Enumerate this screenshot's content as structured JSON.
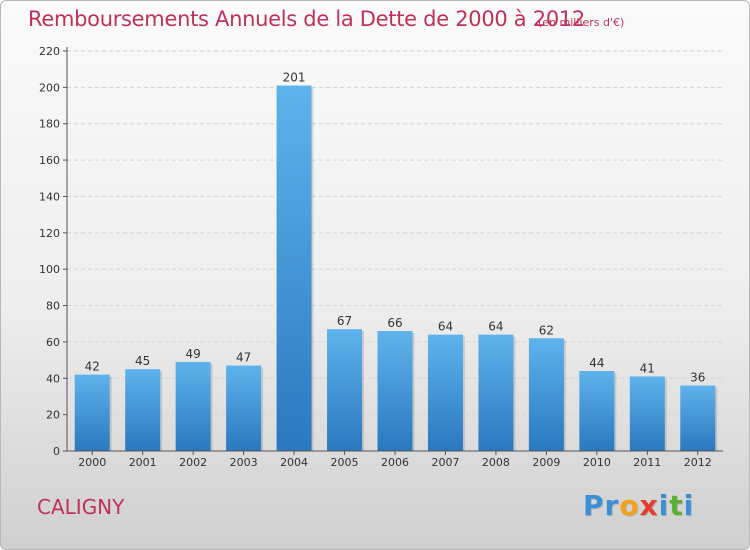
{
  "chart_data": {
    "type": "bar",
    "title": "Remboursements Annuels de la Dette de 2000 à 2012",
    "subtitle": "(en milliers d'€)",
    "categories": [
      "2000",
      "2001",
      "2002",
      "2003",
      "2004",
      "2005",
      "2006",
      "2007",
      "2008",
      "2009",
      "2010",
      "2011",
      "2012"
    ],
    "values": [
      42,
      45,
      49,
      47,
      201,
      67,
      66,
      64,
      64,
      62,
      44,
      41,
      36
    ],
    "value_labels": [
      "42",
      "45",
      "49",
      "47",
      "201",
      "67",
      "66",
      "64",
      "64",
      "62",
      "44",
      "41",
      "36"
    ],
    "xlabel": "",
    "ylabel": "",
    "ylim": [
      0,
      220
    ],
    "yticks": [
      0,
      20,
      40,
      60,
      80,
      100,
      120,
      140,
      160,
      180,
      200,
      220
    ],
    "grid": true,
    "bar_color": "#3d97d8"
  },
  "footer": {
    "city": "CALIGNY",
    "logo_letters": [
      {
        "char": "P",
        "color": "#3a8fd6"
      },
      {
        "char": "r",
        "color": "#3a8fd6"
      },
      {
        "char": "o",
        "color": "#f2a21b"
      },
      {
        "char": "x",
        "color": "#e63c2f"
      },
      {
        "char": "i",
        "color": "#3a8fd6"
      },
      {
        "char": "t",
        "color": "#5ab031"
      },
      {
        "char": "i",
        "color": "#3a8fd6"
      }
    ]
  }
}
